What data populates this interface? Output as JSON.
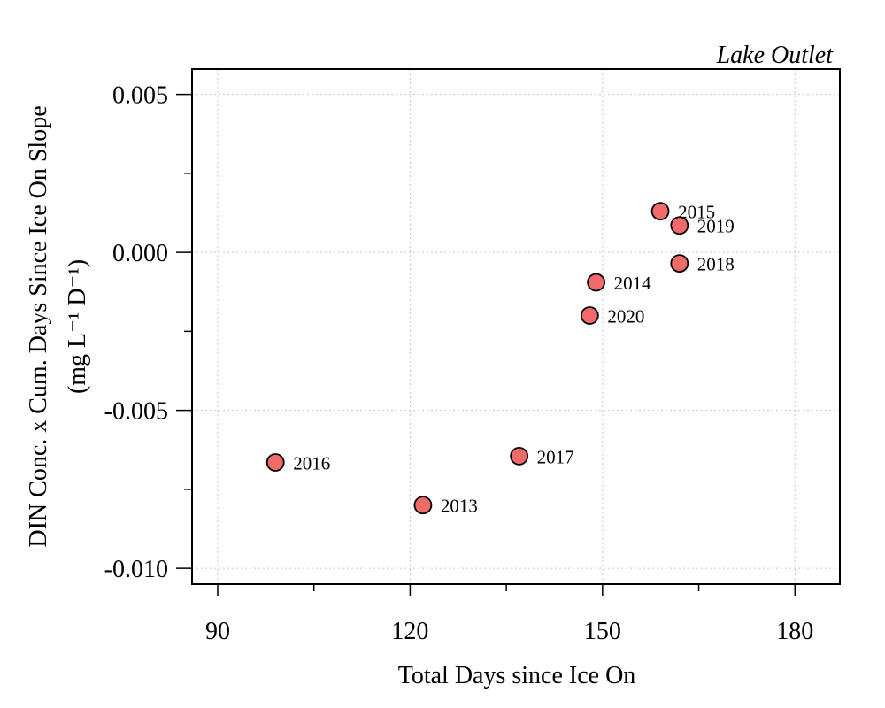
{
  "chart_data": {
    "type": "scatter",
    "title": "Lake Outlet",
    "xlabel": "Total Days since Ice On",
    "ylabel_line1": "DIN Conc. x Cum. Days Since Ice On Slope",
    "ylabel_line2": "(mg L⁻¹ D⁻¹)",
    "xlim": [
      86,
      187
    ],
    "ylim": [
      -0.0105,
      0.0058
    ],
    "x_ticks": [
      90,
      105,
      120,
      135,
      150,
      165,
      180
    ],
    "x_tick_labels": [
      "90",
      "",
      "120",
      "",
      "150",
      "",
      "180"
    ],
    "y_ticks": [
      0.005,
      0.0025,
      0.0,
      -0.0025,
      -0.005,
      -0.0075,
      -0.01
    ],
    "y_tick_labels": [
      "0.005",
      "",
      "0.000",
      "",
      "-0.005",
      "",
      "-0.010"
    ],
    "grid": true,
    "marker_color": "#f06a6a",
    "marker_edge_color": "#000000",
    "points": [
      {
        "x": 99,
        "y": -0.00665,
        "label": "2016"
      },
      {
        "x": 122,
        "y": -0.008,
        "label": "2013"
      },
      {
        "x": 137,
        "y": -0.00645,
        "label": "2017"
      },
      {
        "x": 148,
        "y": -0.002,
        "label": "2020"
      },
      {
        "x": 149,
        "y": -0.00095,
        "label": "2014"
      },
      {
        "x": 159,
        "y": 0.0013,
        "label": "2015"
      },
      {
        "x": 162,
        "y": 0.00085,
        "label": "2019"
      },
      {
        "x": 162,
        "y": -0.00035,
        "label": "2018"
      }
    ]
  }
}
